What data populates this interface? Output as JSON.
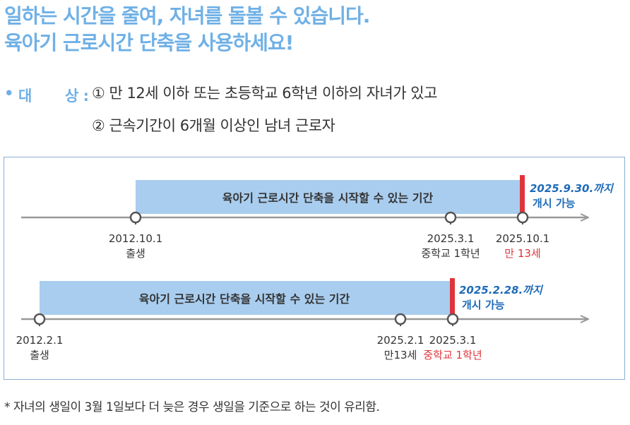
{
  "headline": {
    "line1": "일하는 시간을 줄여, 자녀를 돌볼 수 있습니다.",
    "line2": "육아기 근로시간 단축을 사용하세요!"
  },
  "target": {
    "bullet": "•",
    "label_char1": "대",
    "label_char2": "상 :",
    "item1": "① 만 12세 이하 또는 초등학교 6학년 이하의 자녀가 있고",
    "item2": "② 근속기간이 6개월 이상인 남녀 근로자"
  },
  "timeline1": {
    "bar_label": "육아기 근로시간 단축을 시작할 수 있는 기간",
    "deadline_line1": "2025.9.30.까지",
    "deadline_line2": "개시 가능",
    "points": [
      {
        "date": "2012.10.1",
        "caption": "출생"
      },
      {
        "date": "2025.3.1",
        "caption": "중학교 1학년"
      },
      {
        "date": "2025.10.1",
        "caption": "만 13세"
      }
    ]
  },
  "timeline2": {
    "bar_label": "육아기 근로시간 단축을 시작할 수 있는 기간",
    "deadline_line1": "2025.2.28.까지",
    "deadline_line2": "개시 가능",
    "points": [
      {
        "date": "2012.2.1",
        "caption": "출생"
      },
      {
        "date": "2025.2.1",
        "caption": "만13세"
      },
      {
        "date": "2025.3.1",
        "caption": "중학교 1학년"
      }
    ]
  },
  "footnote": "* 자녀의 생일이 3월 1일보다 더 늦은 경우 생일을 기준으로 하는 것이 유리함.",
  "colors": {
    "headline": "#6fb0e6",
    "bar": "#a9cdee",
    "deadline_marker": "#e0343a",
    "deadline_text": "#1e6bb8",
    "axis": "#999999"
  }
}
